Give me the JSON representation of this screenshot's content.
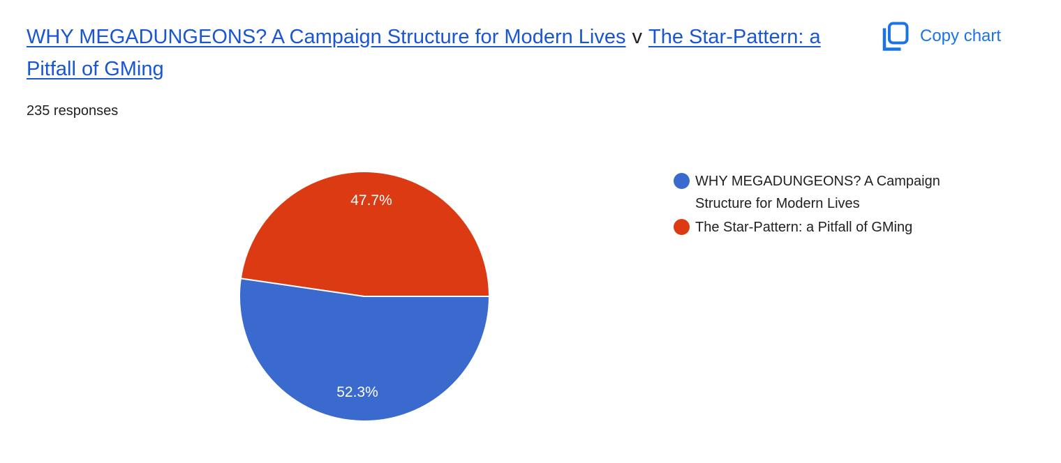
{
  "header": {
    "links": [
      {
        "text": "WHY MEGADUNGEONS? A Campaign Structure for Modern Lives"
      },
      {
        "text": "The Star-Pattern: a Pitfall of GMing"
      }
    ],
    "separator": "v",
    "responses_count": "235 responses",
    "copy_chart_label": "Copy chart"
  },
  "colors": {
    "link_blue": "#1956D2",
    "action_blue": "#1A73E8",
    "text_dark": "#202124",
    "slice_label_white": "#FFFFFF"
  },
  "chart_data": {
    "type": "pie",
    "title": "WHY MEGADUNGEONS? A Campaign Structure for Modern Lives v The Star-Pattern: a Pitfall of GMing",
    "subtitle": "235 responses",
    "start_angle_deg": 0,
    "direction": "clockwise",
    "legend_position": "right",
    "slices": [
      {
        "label": "WHY MEGADUNGEONS? A Campaign Structure for Modern Lives",
        "value_pct": 52.3,
        "display": "52.3%",
        "color": "#3A6ACE"
      },
      {
        "label": "The Star-Pattern: a Pitfall of GMing",
        "value_pct": 47.7,
        "display": "47.7%",
        "color": "#DB3A12"
      }
    ]
  }
}
